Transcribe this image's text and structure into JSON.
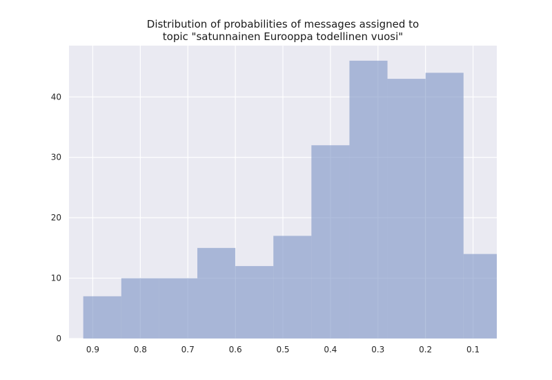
{
  "chart_data": {
    "type": "bar",
    "title_lines": [
      "Distribution of probabilities of messages assigned to",
      "topic \"satunnainen Eurooppa todellinen vuosi\""
    ],
    "xlabel": "",
    "ylabel": "",
    "x_axis_inverted": true,
    "xlim": [
      0.95,
      0.05
    ],
    "ylim": [
      0,
      48.5
    ],
    "xticks": [
      0.9,
      0.8,
      0.7,
      0.6,
      0.5,
      0.4,
      0.3,
      0.2,
      0.1
    ],
    "xtick_labels": [
      "0.9",
      "0.8",
      "0.7",
      "0.6",
      "0.5",
      "0.4",
      "0.3",
      "0.2",
      "0.1"
    ],
    "yticks": [
      0,
      10,
      20,
      30,
      40
    ],
    "ytick_labels": [
      "0",
      "10",
      "20",
      "30",
      "40"
    ],
    "grid": true,
    "bin_width": 0.08,
    "bins": [
      {
        "x_start": 0.92,
        "x_end": 0.84,
        "count": 7
      },
      {
        "x_start": 0.84,
        "x_end": 0.76,
        "count": 10
      },
      {
        "x_start": 0.76,
        "x_end": 0.68,
        "count": 10
      },
      {
        "x_start": 0.68,
        "x_end": 0.6,
        "count": 15
      },
      {
        "x_start": 0.6,
        "x_end": 0.52,
        "count": 12
      },
      {
        "x_start": 0.52,
        "x_end": 0.44,
        "count": 17
      },
      {
        "x_start": 0.44,
        "x_end": 0.36,
        "count": 32
      },
      {
        "x_start": 0.36,
        "x_end": 0.28,
        "count": 46
      },
      {
        "x_start": 0.28,
        "x_end": 0.2,
        "count": 43
      },
      {
        "x_start": 0.2,
        "x_end": 0.12,
        "count": 44
      },
      {
        "x_start": 0.12,
        "x_end": 0.05,
        "count": 14
      }
    ],
    "colors": {
      "bar": "#7b92c4",
      "plot_background": "#eaeaf2",
      "grid": "#ffffff"
    }
  }
}
